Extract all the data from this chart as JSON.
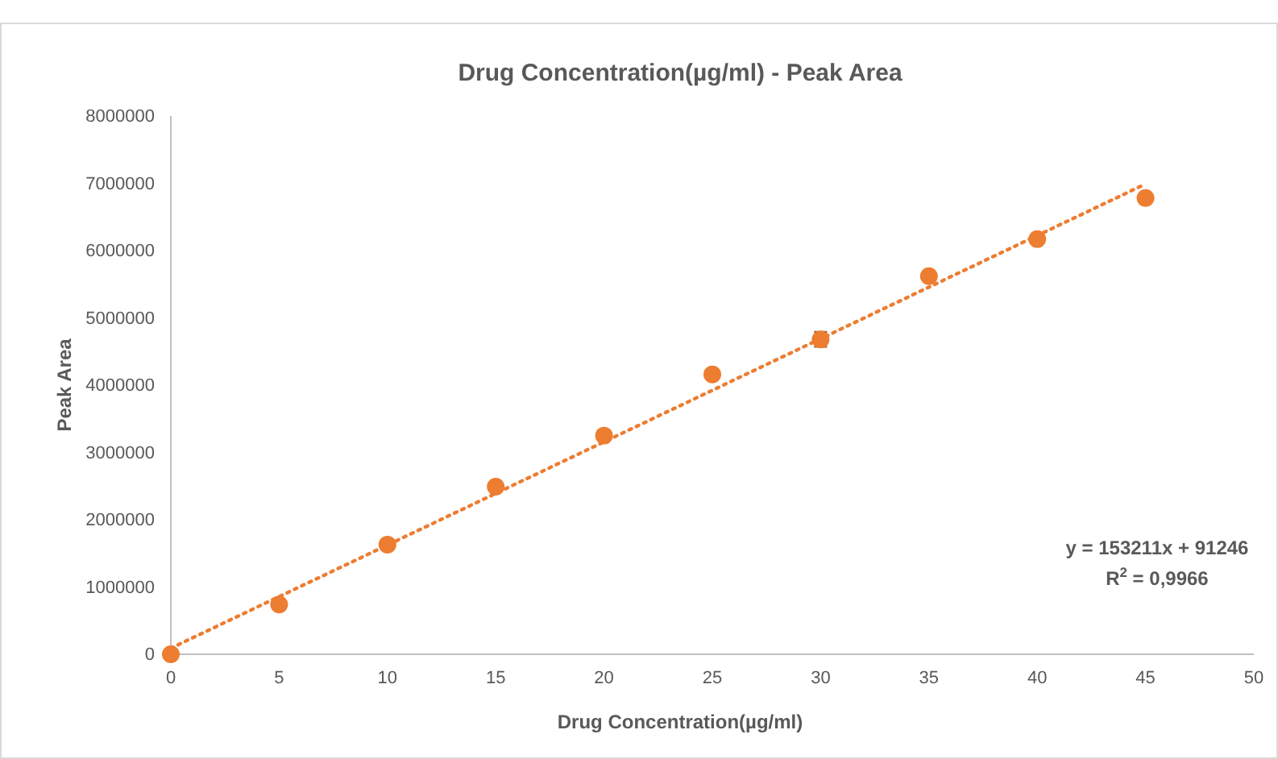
{
  "chart_data": {
    "type": "scatter",
    "title": "Drug Concentration(µg/ml) - Peak Area",
    "xlabel": "Drug Concentration(µg/ml)",
    "ylabel": "Peak Area",
    "xlim": [
      0,
      50
    ],
    "xticks": [
      0,
      5,
      10,
      15,
      20,
      25,
      30,
      35,
      40,
      45,
      50
    ],
    "ylim": [
      0,
      8000000
    ],
    "yticks": [
      0,
      1000000,
      2000000,
      3000000,
      4000000,
      5000000,
      6000000,
      7000000,
      8000000
    ],
    "grid": false,
    "marker": "circle",
    "series": [
      {
        "color": "#ed7d31",
        "x": [
          0,
          5,
          10,
          15,
          20,
          25,
          30,
          35,
          40,
          45
        ],
        "values": [
          0,
          740000,
          1630000,
          2490000,
          3250000,
          4160000,
          4680000,
          5620000,
          6170000,
          6780000
        ],
        "errors": [
          null,
          null,
          null,
          null,
          null,
          null,
          110000,
          null,
          null,
          null
        ]
      },
      {
        "type": "line",
        "color": "#ed7d31",
        "line_style": "dotted",
        "marker": "none",
        "x": [
          0,
          45
        ],
        "values": [
          90000,
          6990000
        ]
      }
    ],
    "annotations": [
      "y = 153211x + 91246",
      "R$^{2}$ = 0,9966"
    ]
  }
}
